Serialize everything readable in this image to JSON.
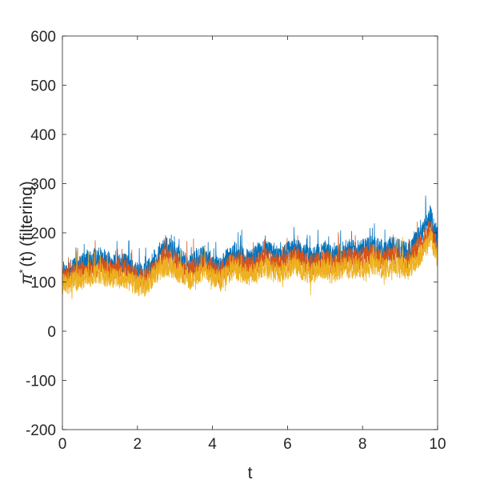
{
  "chart_data": {
    "type": "line",
    "title": "",
    "xlabel": "t",
    "ylabel": "π*(t) (filtering)",
    "ylabel_parts": {
      "symbol": "π",
      "superscript": "*",
      "rest": "(t) (filtering)"
    },
    "xlim": [
      0,
      10
    ],
    "ylim": [
      -200,
      600
    ],
    "xticks": [
      0,
      2,
      4,
      6,
      8,
      10
    ],
    "yticks": [
      -200,
      -100,
      0,
      100,
      200,
      300,
      400,
      500,
      600
    ],
    "xtick_labels": [
      "0",
      "2",
      "4",
      "6",
      "8",
      "10"
    ],
    "ytick_labels": [
      "-200",
      "-100",
      "0",
      "100",
      "200",
      "300",
      "400",
      "500",
      "600"
    ],
    "grid": false,
    "legend": "none",
    "series": [
      {
        "color": "#0072BD",
        "x": [
          0,
          0.2,
          0.4,
          0.6,
          0.8,
          1,
          1.2,
          1.4,
          1.6,
          1.8,
          2,
          2.2,
          2.4,
          2.6,
          2.8,
          3,
          3.2,
          3.4,
          3.6,
          3.8,
          4,
          4.2,
          4.4,
          4.6,
          4.8,
          5,
          5.2,
          5.4,
          5.6,
          5.8,
          6,
          6.2,
          6.4,
          6.6,
          6.8,
          7,
          7.2,
          7.4,
          7.6,
          7.8,
          8,
          8.2,
          8.4,
          8.6,
          8.8,
          9,
          9.2,
          9.4,
          9.6,
          9.8,
          10
        ],
        "values": [
          120,
          125,
          132,
          138,
          145,
          150,
          142,
          135,
          140,
          130,
          120,
          118,
          140,
          160,
          170,
          160,
          145,
          135,
          145,
          155,
          140,
          130,
          148,
          160,
          150,
          145,
          158,
          165,
          155,
          150,
          160,
          170,
          158,
          150,
          155,
          162,
          150,
          158,
          168,
          162,
          165,
          175,
          170,
          160,
          172,
          165,
          160,
          180,
          200,
          235,
          190
        ]
      },
      {
        "color": "#D95319",
        "x": [
          0,
          0.2,
          0.4,
          0.6,
          0.8,
          1,
          1.2,
          1.4,
          1.6,
          1.8,
          2,
          2.2,
          2.4,
          2.6,
          2.8,
          3,
          3.2,
          3.4,
          3.6,
          3.8,
          4,
          4.2,
          4.4,
          4.6,
          4.8,
          5,
          5.2,
          5.4,
          5.6,
          5.8,
          6,
          6.2,
          6.4,
          6.6,
          6.8,
          7,
          7.2,
          7.4,
          7.6,
          7.8,
          8,
          8.2,
          8.4,
          8.6,
          8.8,
          9,
          9.2,
          9.4,
          9.6,
          9.8,
          10
        ],
        "values": [
          108,
          112,
          118,
          123,
          128,
          133,
          127,
          121,
          125,
          117,
          108,
          106,
          125,
          143,
          152,
          143,
          130,
          121,
          130,
          139,
          126,
          117,
          133,
          143,
          135,
          130,
          141,
          148,
          139,
          134,
          143,
          152,
          141,
          134,
          139,
          145,
          134,
          141,
          150,
          145,
          148,
          157,
          152,
          143,
          154,
          148,
          143,
          162,
          180,
          212,
          170
        ]
      },
      {
        "color": "#EDB120",
        "x": [
          0,
          0.2,
          0.4,
          0.6,
          0.8,
          1,
          1.2,
          1.4,
          1.6,
          1.8,
          2,
          2.2,
          2.4,
          2.6,
          2.8,
          3,
          3.2,
          3.4,
          3.6,
          3.8,
          4,
          4.2,
          4.4,
          4.6,
          4.8,
          5,
          5.2,
          5.4,
          5.6,
          5.8,
          6,
          6.2,
          6.4,
          6.6,
          6.8,
          7,
          7.2,
          7.4,
          7.6,
          7.8,
          8,
          8.2,
          8.4,
          8.6,
          8.8,
          9,
          9.2,
          9.4,
          9.6,
          9.8,
          10
        ],
        "values": [
          95,
          98,
          104,
          108,
          113,
          117,
          111,
          106,
          110,
          102,
          94,
          92,
          110,
          126,
          134,
          126,
          114,
          106,
          114,
          122,
          110,
          102,
          116,
          126,
          118,
          114,
          124,
          130,
          122,
          118,
          126,
          134,
          124,
          118,
          122,
          128,
          118,
          124,
          132,
          127,
          130,
          138,
          134,
          126,
          136,
          130,
          126,
          142,
          160,
          190,
          150
        ]
      }
    ]
  }
}
